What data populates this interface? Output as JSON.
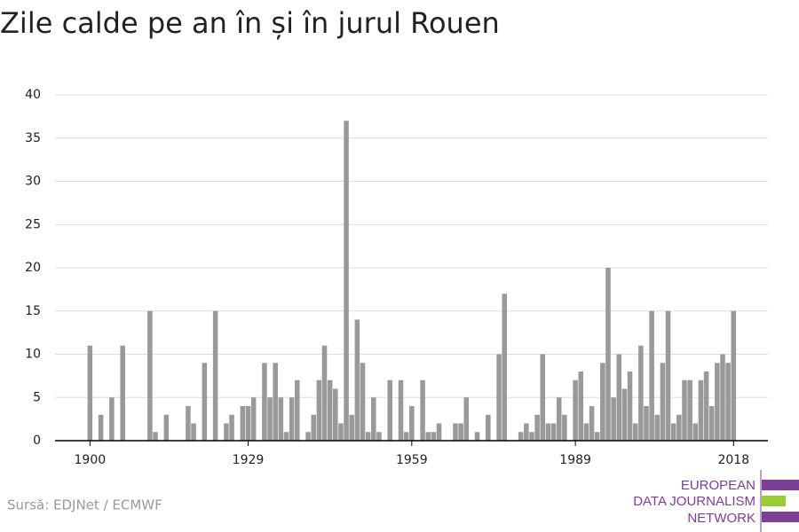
{
  "chart_data": {
    "type": "bar",
    "title": "Zile calde pe an în și în jurul Rouen",
    "source": "Sursă: EDJNet / ECMWF",
    "logo": [
      "EUROPEAN",
      "DATA JOURNALISM",
      "NETWORK"
    ],
    "color": "#999999",
    "x": [
      1900,
      1901,
      1902,
      1903,
      1904,
      1905,
      1906,
      1907,
      1908,
      1909,
      1910,
      1911,
      1912,
      1913,
      1914,
      1915,
      1916,
      1917,
      1918,
      1919,
      1920,
      1921,
      1922,
      1923,
      1924,
      1925,
      1926,
      1927,
      1928,
      1929,
      1930,
      1931,
      1932,
      1933,
      1934,
      1935,
      1936,
      1937,
      1938,
      1939,
      1940,
      1941,
      1942,
      1943,
      1944,
      1945,
      1946,
      1947,
      1948,
      1949,
      1950,
      1951,
      1952,
      1953,
      1954,
      1955,
      1956,
      1957,
      1958,
      1959,
      1960,
      1961,
      1962,
      1963,
      1964,
      1965,
      1966,
      1967,
      1968,
      1969,
      1970,
      1971,
      1972,
      1973,
      1974,
      1975,
      1976,
      1977,
      1978,
      1979,
      1980,
      1981,
      1982,
      1983,
      1984,
      1985,
      1986,
      1987,
      1988,
      1989,
      1990,
      1991,
      1992,
      1993,
      1994,
      1995,
      1996,
      1997,
      1998,
      1999,
      2000,
      2001,
      2002,
      2003,
      2004,
      2005,
      2006,
      2007,
      2008,
      2009,
      2010,
      2011,
      2012,
      2013,
      2014,
      2015,
      2016,
      2017,
      2018
    ],
    "values": [
      11,
      0,
      3,
      0,
      5,
      0,
      11,
      0,
      0,
      0,
      0,
      15,
      1,
      0,
      3,
      0,
      0,
      0,
      4,
      2,
      0,
      9,
      0,
      15,
      0,
      2,
      3,
      0,
      4,
      4,
      5,
      0,
      9,
      5,
      9,
      5,
      1,
      5,
      7,
      0,
      1,
      3,
      7,
      11,
      7,
      6,
      2,
      37,
      3,
      14,
      9,
      1,
      5,
      1,
      0,
      7,
      0,
      7,
      1,
      4,
      0,
      7,
      1,
      1,
      2,
      0,
      0,
      2,
      2,
      5,
      0,
      1,
      0,
      3,
      0,
      10,
      17,
      0,
      0,
      1,
      2,
      1,
      3,
      10,
      2,
      2,
      5,
      3,
      0,
      7,
      8,
      2,
      4,
      1,
      9,
      20,
      5,
      10,
      6,
      8,
      2,
      11,
      4,
      15,
      3,
      9,
      15,
      2,
      3,
      7,
      7,
      2,
      7,
      8,
      4,
      9,
      10,
      9,
      15
    ],
    "xlim": [
      1893.6,
      2024.3
    ],
    "xticks": [
      1900,
      1929,
      1959,
      1989,
      2018
    ],
    "ylim": [
      0,
      40
    ],
    "yticks": [
      0,
      5,
      10,
      15,
      20,
      25,
      30,
      35,
      40
    ],
    "grid": true
  }
}
